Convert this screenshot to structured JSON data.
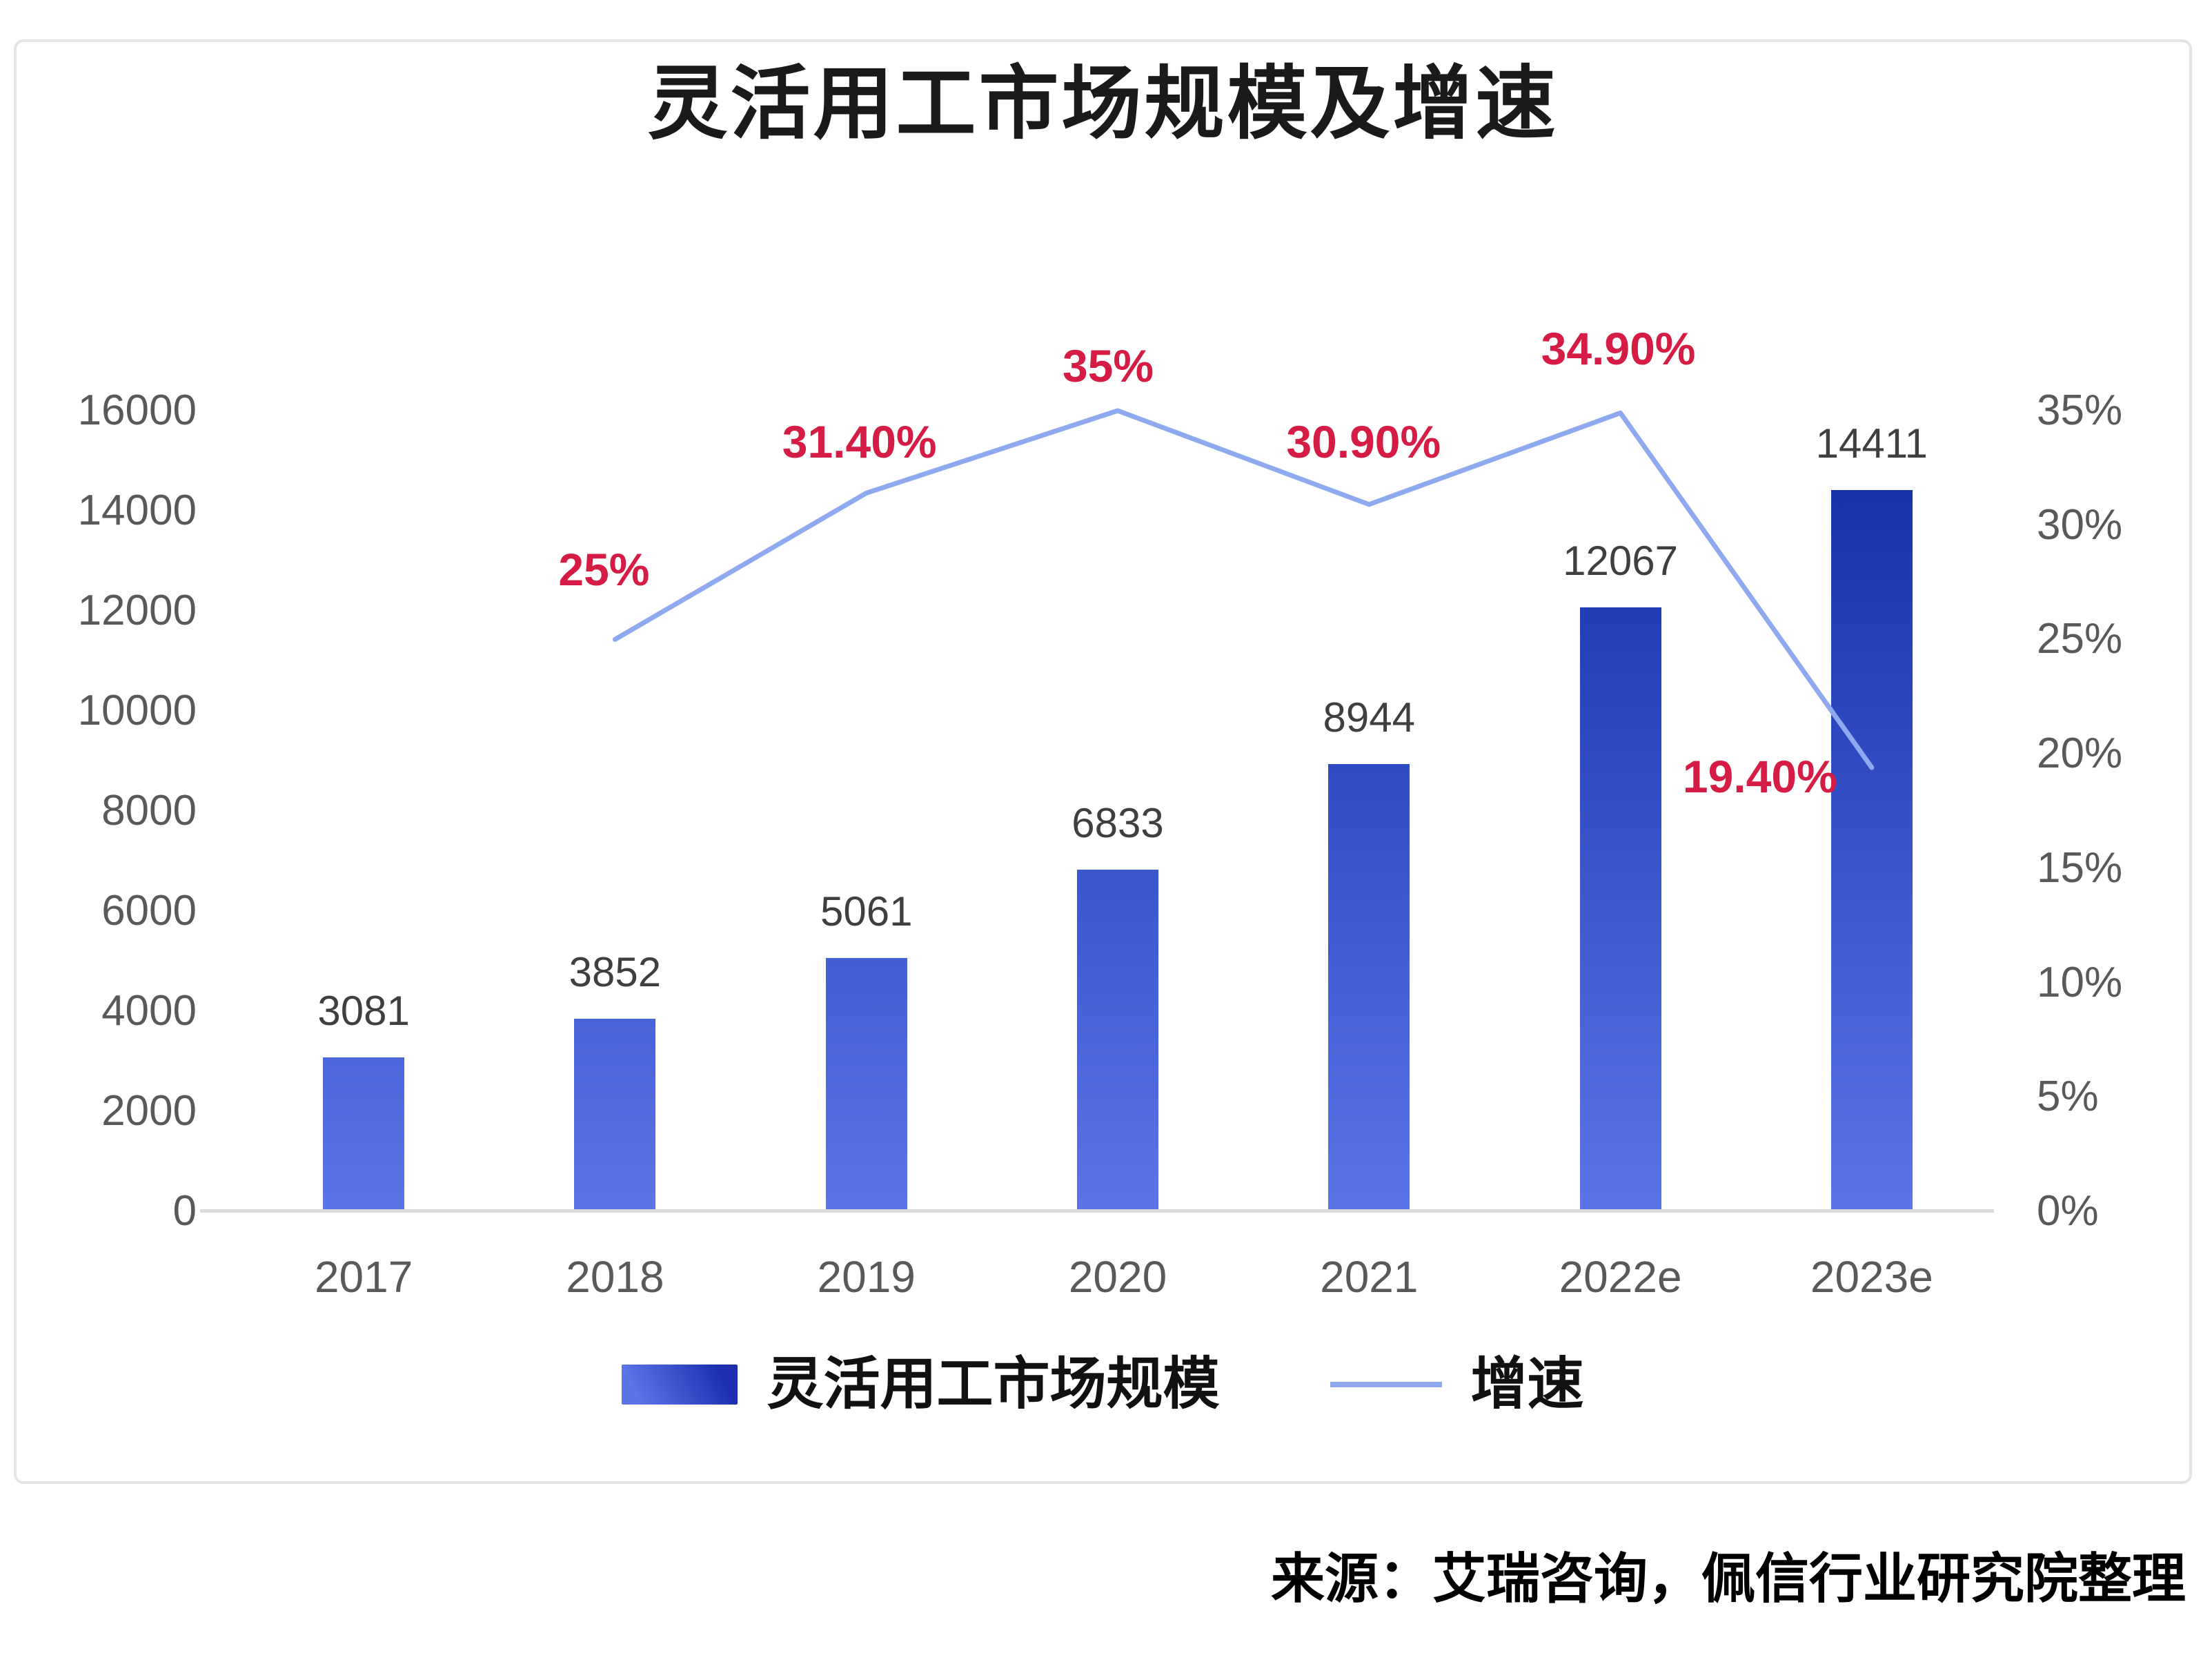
{
  "title": "灵活用工市场规模及增速",
  "source": "来源：艾瑞咨询，佩信行业研究院整理",
  "legend": {
    "items": [
      {
        "label": "灵活用工市场规模",
        "swatch": "bar-gradient-swatch"
      },
      {
        "label": "增速",
        "swatch": "line-swatch"
      }
    ]
  },
  "chart_data": {
    "type": "bar+line combo",
    "title": "灵活用工市场规模及增速",
    "categories": [
      "2017",
      "2018",
      "2019",
      "2020",
      "2021",
      "2022e",
      "2023e"
    ],
    "series": [
      {
        "name": "灵活用工市场规模",
        "type": "bar",
        "axis": "left",
        "values": [
          3081,
          3852,
          5061,
          6833,
          8944,
          12067,
          14411
        ]
      },
      {
        "name": "增速",
        "type": "line",
        "axis": "right",
        "values": [
          null,
          25,
          31.4,
          35,
          30.9,
          34.9,
          19.4
        ],
        "labels": [
          null,
          "25%",
          "31.40%",
          "35%",
          "30.90%",
          "34.90%",
          "19.40%"
        ]
      }
    ],
    "left_axis": {
      "min": 0,
      "max": 16000,
      "step": 2000,
      "ticks": [
        "0",
        "2000",
        "4000",
        "6000",
        "8000",
        "10000",
        "12000",
        "14000",
        "16000"
      ]
    },
    "right_axis": {
      "min": 0,
      "max": 35,
      "step": 5,
      "ticks": [
        "0%",
        "5%",
        "10%",
        "15%",
        "20%",
        "25%",
        "30%",
        "35%"
      ]
    },
    "grid": "off",
    "legend_position": "bottom",
    "colors": {
      "bar_gradient_top": "#0f2ca4",
      "bar_gradient_bottom": "#5b74e8",
      "line": "#8ea9ed",
      "growth_label": "#d51c45",
      "value_label": "#3f3f3f",
      "tick_label": "#595959",
      "axis_line": "#d9d9d9"
    }
  }
}
